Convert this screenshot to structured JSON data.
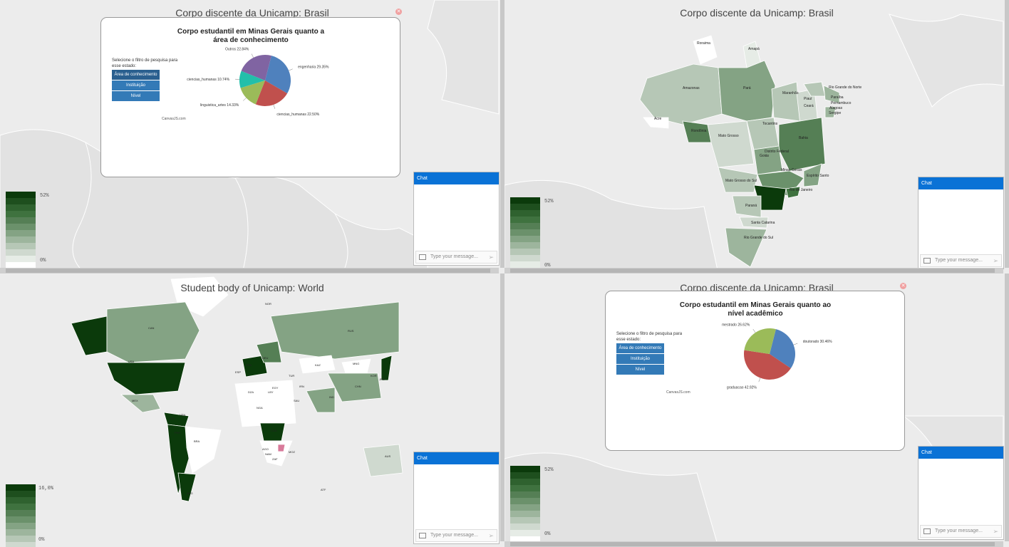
{
  "legend_colors": [
    "#0b3a0b",
    "#1e4f1e",
    "#2f622f",
    "#3f723f",
    "#557f55",
    "#6b916b",
    "#84a384",
    "#9db59d",
    "#b6c7b6",
    "#cfd9cf",
    "#e6ece6",
    "#ffffff"
  ],
  "q1": {
    "title": "Corpo discente da Unicamp: Brasil",
    "legend": {
      "max": "52%",
      "min": "0%"
    },
    "chat": {
      "header": "Chat",
      "placeholder": "Type your message..."
    },
    "modal": {
      "title": "Corpo estudantil em Minas Gerais quanto a área de conhecimento",
      "filter_label": "Selecione o filtro de pesquisa para esse estado:",
      "buttons": [
        "Área de conhecimento",
        "Instituição",
        "Nível"
      ],
      "credit": "CanvasJS.com"
    },
    "chart_data": {
      "type": "pie",
      "title": "Corpo estudantil em Minas Gerais quanto a área de conhecimento",
      "slices": [
        {
          "label": "engenharia 29.35%",
          "value": 29.35,
          "color": "#4f81bd"
        },
        {
          "label": "ciencias_humanas 22.50%",
          "value": 22.5,
          "color": "#c0504d"
        },
        {
          "label": "linguistica_artes 14.33%",
          "value": 14.33,
          "color": "#9bbb59"
        },
        {
          "label": "ciencias_humanas 10.74%",
          "value": 10.74,
          "color": "#23bfaa"
        },
        {
          "label": "Outros 22.84%",
          "value": 22.84,
          "color": "#8064a2"
        }
      ]
    }
  },
  "q2": {
    "title": "Corpo discente da Unicamp: Brasil",
    "legend": {
      "max": "52%",
      "min": "0%"
    },
    "chat": {
      "header": "Chat",
      "placeholder": "Type your message..."
    },
    "states": [
      "Roraima",
      "Amapá",
      "Amazonas",
      "Pará",
      "Maranhão",
      "Ceará",
      "Rio Grande do Norte",
      "Paraíba",
      "Pernambuco",
      "Alagoas",
      "Sergipe",
      "Piauí",
      "Acre",
      "Rondônia",
      "Tocantins",
      "Bahia",
      "Mato Grosso",
      "Distrito Federal",
      "Goiás",
      "Minas Gerais",
      "Espírito Santo",
      "Mato Grosso do Sul",
      "Rio de Janeiro",
      "Paraná",
      "Santa Catarina",
      "Rio Grande do Sul"
    ]
  },
  "q3": {
    "title": "Student body of Unicamp: World",
    "legend": {
      "max": "16,0%",
      "min": "0%"
    },
    "chat": {
      "header": "Chat",
      "placeholder": "Type your message..."
    },
    "countries": [
      "GRL",
      "NOR",
      "CAN",
      "RUS",
      "USA",
      "KAZ",
      "MNG",
      "CHN",
      "JPN",
      "IRN",
      "IND",
      "SAU",
      "EGY",
      "LBY",
      "DZA",
      "NGA",
      "COD",
      "ZAF",
      "BRA",
      "ARG",
      "PER",
      "COL",
      "VEN",
      "AUS",
      "MEX",
      "FRA",
      "DEU",
      "ESP",
      "TUR",
      "KOR",
      "AGO",
      "NAM",
      "MOZ",
      "ATF",
      "NZL"
    ]
  },
  "q4": {
    "title": "Corpo discente da Unicamp: Brasil",
    "legend": {
      "max": "52%",
      "min": "0%"
    },
    "chat": {
      "header": "Chat",
      "placeholder": "Type your message..."
    },
    "modal": {
      "title": "Corpo estudantil em Minas Gerais quanto ao nível acadêmico",
      "filter_label": "Selecione o filtro de pesquisa para esse estado:",
      "buttons": [
        "Área de conhecimento",
        "Instituição",
        "Nível"
      ],
      "credit": "CanvasJS.com"
    },
    "chart_data": {
      "type": "pie",
      "title": "Corpo estudantil em Minas Gerais quanto ao nível acadêmico",
      "slices": [
        {
          "label": "doutorado 30.46%",
          "value": 30.46,
          "color": "#4f81bd"
        },
        {
          "label": "graduacao 42.92%",
          "value": 42.92,
          "color": "#c0504d"
        },
        {
          "label": "mestrado 26.62%",
          "value": 26.62,
          "color": "#9bbb59"
        }
      ]
    }
  }
}
